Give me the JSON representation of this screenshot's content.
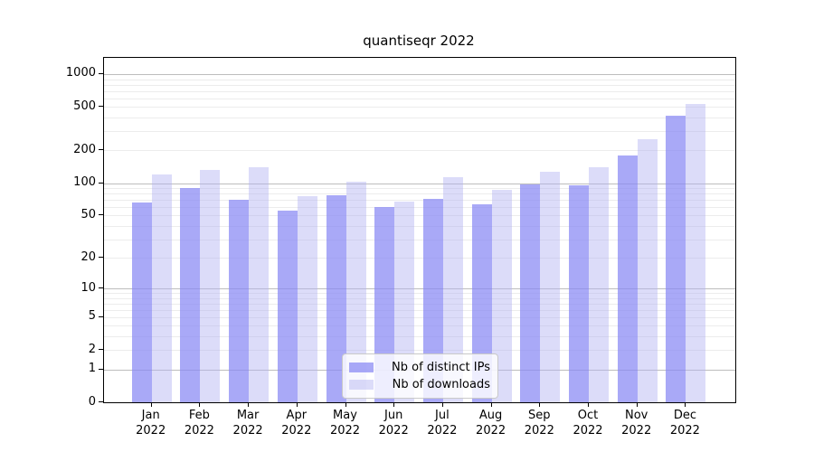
{
  "chart_data": {
    "type": "bar",
    "title": "quantiseqr 2022",
    "categories": [
      {
        "month": "Jan",
        "year": "2022"
      },
      {
        "month": "Feb",
        "year": "2022"
      },
      {
        "month": "Mar",
        "year": "2022"
      },
      {
        "month": "Apr",
        "year": "2022"
      },
      {
        "month": "May",
        "year": "2022"
      },
      {
        "month": "Jun",
        "year": "2022"
      },
      {
        "month": "Jul",
        "year": "2022"
      },
      {
        "month": "Aug",
        "year": "2022"
      },
      {
        "month": "Sep",
        "year": "2022"
      },
      {
        "month": "Oct",
        "year": "2022"
      },
      {
        "month": "Nov",
        "year": "2022"
      },
      {
        "month": "Dec",
        "year": "2022"
      }
    ],
    "series": [
      {
        "name": "Nb of distinct IPs",
        "key": "distinct-ips",
        "color": "rgba(136,136,244,0.72)",
        "color_on_white": "#a9a9f7",
        "values": [
          66,
          90,
          70,
          56,
          77,
          60,
          71,
          64,
          98,
          95,
          180,
          420
        ]
      },
      {
        "name": "Nb of downloads",
        "key": "downloads",
        "color": "rgba(177,177,242,0.45)",
        "color_on_white": "#dcdcf9",
        "values": [
          120,
          133,
          140,
          75,
          102,
          67,
          113,
          86,
          127,
          140,
          255,
          530
        ]
      }
    ],
    "yscale": "log10(value+1)",
    "yticks": [
      0,
      1,
      2,
      5,
      10,
      20,
      50,
      100,
      200,
      500,
      1000
    ],
    "ylim": [
      0,
      1400
    ],
    "grid": true,
    "grid_major_values": [
      1,
      10,
      100,
      1000
    ],
    "grid_major_color": "#bdbdbd",
    "grid_minor_color": "#ececec",
    "legend_position": "lower center",
    "xlabel": "",
    "ylabel": ""
  }
}
